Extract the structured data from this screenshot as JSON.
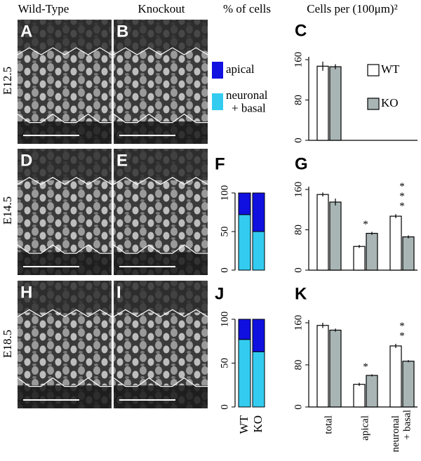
{
  "headers": {
    "wild_type": "Wild-Type",
    "knockout": "Knockout",
    "percent": "% of cells",
    "density": "Cells per (100μm)²"
  },
  "rows": [
    "E12.5",
    "E14.5",
    "E18.5"
  ],
  "images": [
    "A",
    "B",
    "D",
    "E",
    "H",
    "I"
  ],
  "chart_data": [
    {
      "type": "bar",
      "label": "C",
      "categories": [
        null
      ],
      "ylim": [
        0,
        160
      ],
      "yticks": [
        0,
        80,
        160
      ],
      "series": [
        {
          "name": "WT",
          "color": "#ffffff",
          "values": [
            147
          ],
          "errors": [
            9
          ]
        },
        {
          "name": "KO",
          "color": "#a9b5b5",
          "values": [
            146
          ],
          "errors": [
            5
          ]
        }
      ]
    },
    {
      "type": "stacked_bar",
      "label": "F",
      "categories": [
        null,
        null
      ],
      "ylim": [
        0,
        100
      ],
      "yticks": [
        0,
        50,
        100
      ],
      "series": [
        {
          "name": "neuronal + basal",
          "color": "#33ccf0",
          "values": [
            72,
            50
          ]
        },
        {
          "name": "apical",
          "color": "#1010e0",
          "values": [
            28,
            50
          ]
        }
      ]
    },
    {
      "type": "bar",
      "label": "G",
      "categories": [
        null,
        null,
        null
      ],
      "ylim": [
        0,
        160
      ],
      "yticks": [
        0,
        80,
        160
      ],
      "significance": [
        null,
        "*",
        "***"
      ],
      "series": [
        {
          "color": "#ffffff",
          "values": [
            150,
            47,
            107
          ],
          "errors": [
            4,
            3,
            4
          ]
        },
        {
          "color": "#a9b5b5",
          "values": [
            135,
            73,
            66
          ],
          "errors": [
            7,
            3,
            3
          ]
        }
      ]
    },
    {
      "type": "stacked_bar",
      "label": "J",
      "categories": [
        "WT",
        "KO"
      ],
      "ylim": [
        0,
        100
      ],
      "yticks": [
        0,
        50,
        100
      ],
      "series": [
        {
          "color": "#33ccf0",
          "values": [
            77,
            63
          ]
        },
        {
          "color": "#1010e0",
          "values": [
            23,
            37
          ]
        }
      ]
    },
    {
      "type": "bar",
      "label": "K",
      "categories": [
        "total",
        "apical",
        "neuronal + basal"
      ],
      "ylim": [
        0,
        160
      ],
      "yticks": [
        0,
        80,
        160
      ],
      "significance": [
        null,
        "*",
        "**"
      ],
      "series": [
        {
          "color": "#ffffff",
          "values": [
            155,
            43,
            116
          ],
          "errors": [
            5,
            3,
            4
          ]
        },
        {
          "color": "#a9b5b5",
          "values": [
            146,
            60,
            87
          ],
          "errors": [
            3,
            2,
            2
          ]
        }
      ]
    }
  ]
}
